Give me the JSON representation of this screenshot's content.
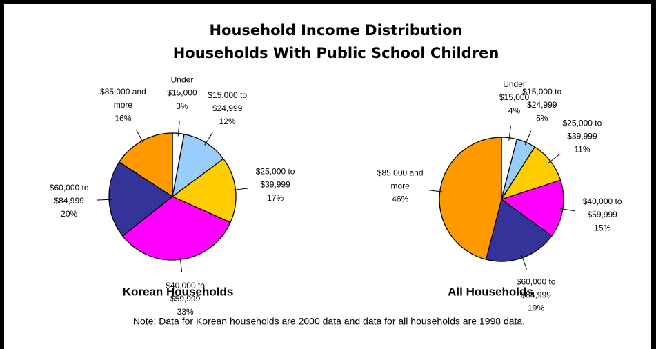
{
  "title": [
    "Household Income Distribution",
    "Households With Public School Children"
  ],
  "note": "Note: Data for Korean households are 2000 data and data for all households are 1998 data.",
  "chart_data": [
    {
      "type": "pie",
      "title": "Korean Households",
      "categories": [
        "Under $15,000",
        "$15,000 to $24,999",
        "$25,000 to $39,999",
        "$40,000 to $59,999",
        "$60,000 to $84,999",
        "$85,000 and more"
      ],
      "values": [
        3,
        12,
        17,
        33,
        20,
        16
      ],
      "value_labels": [
        "3%",
        "12%",
        "17%",
        "33%",
        "20%",
        "16%"
      ],
      "colors": [
        "#ffffff",
        "#99ccff",
        "#ffcc00",
        "#ff00ff",
        "#333399",
        "#ff9900"
      ]
    },
    {
      "type": "pie",
      "title": "All Households",
      "categories": [
        "Under $15,000",
        "$15,000 to $24,999",
        "$25,000 to $39,999",
        "$40,000 to $59,999",
        "$60,000 to $84,999",
        "$85,000 and more"
      ],
      "values": [
        4,
        5,
        11,
        15,
        19,
        46
      ],
      "value_labels": [
        "4%",
        "5%",
        "11%",
        "15%",
        "19%",
        "46%"
      ],
      "colors": [
        "#ffffff",
        "#99ccff",
        "#ffcc00",
        "#ff00ff",
        "#333399",
        "#ff9900"
      ]
    }
  ]
}
